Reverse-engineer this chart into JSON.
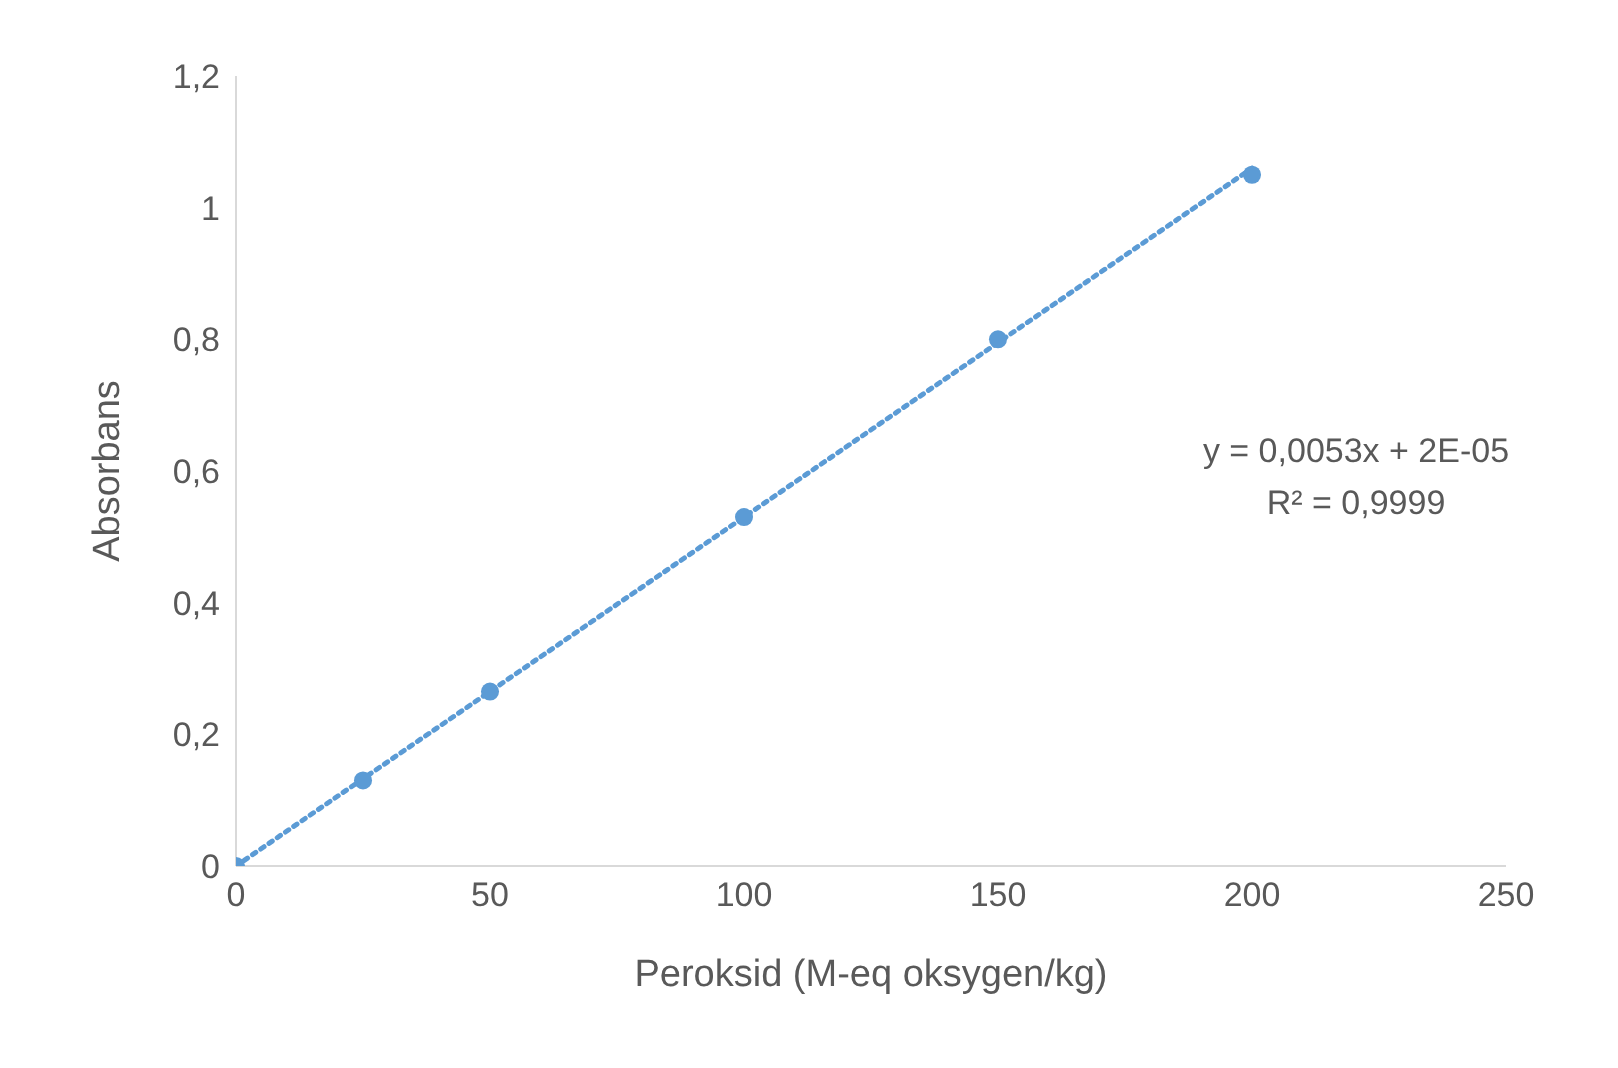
{
  "chart_data": {
    "type": "scatter",
    "xlabel": "Peroksid (M-eq oksygen/kg)",
    "ylabel": "Absorbans",
    "x": [
      0,
      25,
      50,
      100,
      150,
      200
    ],
    "series": [
      {
        "color": "#5b9bd5",
        "values": [
          0,
          0.13,
          0.265,
          0.53,
          0.8,
          1.05
        ],
        "marker": "circle"
      },
      {
        "type": "line",
        "color": "#5b9bd5",
        "x": [
          0,
          200
        ],
        "values": [
          0,
          1.06
        ],
        "line_style": "dotted",
        "marker": "none"
      }
    ],
    "annotations": [
      "y = 0,0053x + 2E-05",
      "R² = 0,9999"
    ],
    "xlim": [
      0,
      250
    ],
    "xticks": [
      0,
      50,
      100,
      150,
      200,
      250
    ],
    "ylim": [
      0,
      1.2
    ],
    "yticks": [
      0,
      {
        "value": 0.2,
        "label": "0,2"
      },
      {
        "value": 0.4,
        "label": "0,4"
      },
      {
        "value": 0.6,
        "label": "0,6"
      },
      {
        "value": 0.8,
        "label": "0,8"
      },
      1,
      {
        "value": 1.2,
        "label": "1,2"
      }
    ],
    "grid": false,
    "legend": false
  }
}
